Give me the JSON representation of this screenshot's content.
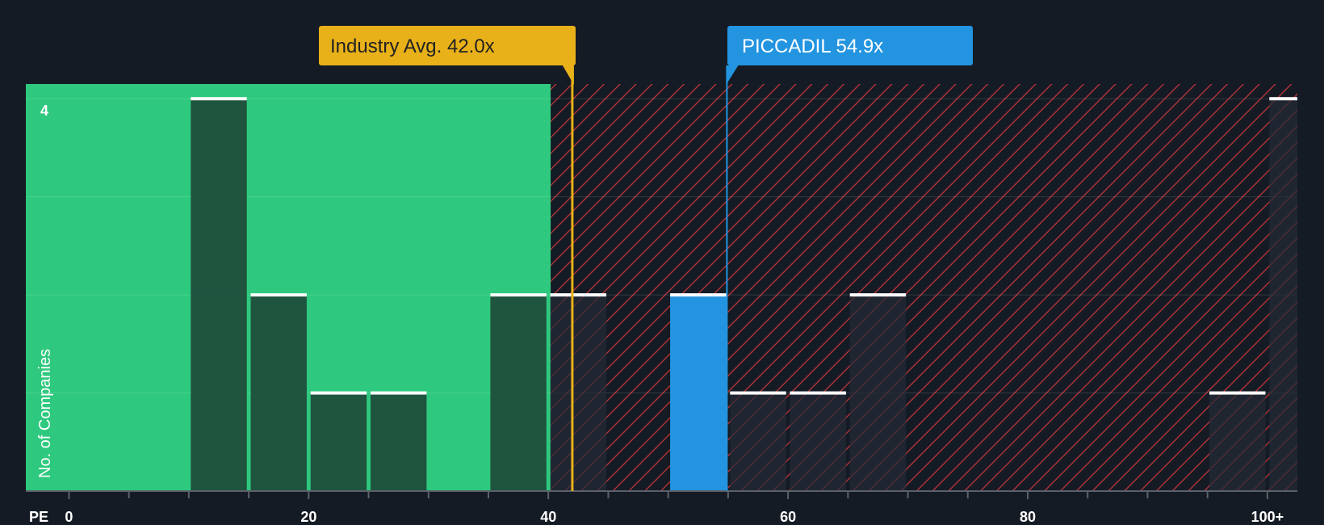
{
  "chart_data": {
    "type": "bar",
    "x_axis_prefix": "PE",
    "x_ticks": [
      {
        "value": 0,
        "label": "0"
      },
      {
        "value": 20,
        "label": "20"
      },
      {
        "value": 40,
        "label": "40"
      },
      {
        "value": 60,
        "label": "60"
      },
      {
        "value": 80,
        "label": "80"
      },
      {
        "value": 100,
        "label": "100+"
      }
    ],
    "xlim": [
      -3.6,
      102.5
    ],
    "ylim": [
      0,
      4.15
    ],
    "y_tick_label": "4",
    "y_tick_value": 4,
    "ylabel": "No. of Companies",
    "bin_width": 5,
    "bins": [
      {
        "start": 10,
        "count": 4
      },
      {
        "start": 15,
        "count": 2
      },
      {
        "start": 20,
        "count": 1
      },
      {
        "start": 25,
        "count": 1
      },
      {
        "start": 35,
        "count": 2
      },
      {
        "start": 40,
        "count": 2
      },
      {
        "start": 50,
        "count": 2,
        "highlight": true
      },
      {
        "start": 55,
        "count": 1
      },
      {
        "start": 60,
        "count": 1
      },
      {
        "start": 65,
        "count": 2
      },
      {
        "start": 95,
        "count": 1
      },
      {
        "start": 100,
        "count": 4
      }
    ],
    "fair_range_end": 40.2,
    "industry_avg": {
      "value": 42.0,
      "label": "Industry Avg. 42.0x"
    },
    "company": {
      "value": 54.9,
      "label": "PICCADIL 54.9x"
    },
    "colors": {
      "background": "#151b24",
      "green_zone": "#2ec97e",
      "red_stripe": "#c0343b",
      "bar_in_green": "#1e4a3a",
      "bar_in_red": "#262b36",
      "highlight_bar": "#2394e0",
      "industry": "#e9b119",
      "company": "#2394e0",
      "cap_line": "#ffffff"
    }
  }
}
